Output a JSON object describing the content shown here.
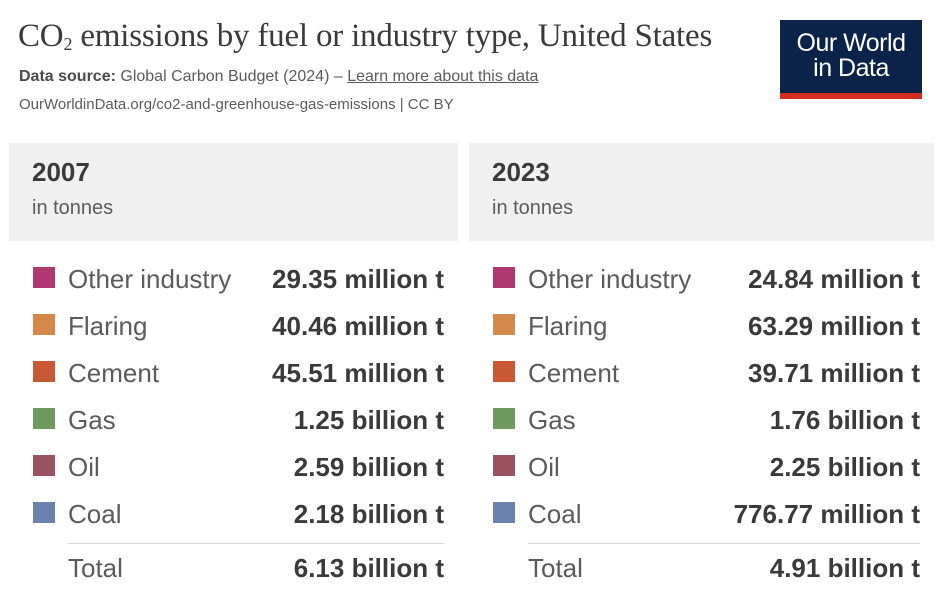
{
  "header": {
    "title_main": "CO",
    "title_sub": "2",
    "title_rest": " emissions by fuel or industry type, United States",
    "source_label": "Data source:",
    "source_text": "Global Carbon Budget (2024) – ",
    "source_link": "Learn more about this data",
    "url": "OurWorldinData.org/co2-and-greenhouse-gas-emissions | CC BY",
    "logo_line1": "Our World",
    "logo_line2": "in Data"
  },
  "chart_data": {
    "type": "table",
    "title": "CO₂ emissions by fuel or industry type, United States",
    "unit_label": "in tonnes",
    "categories": [
      "Other industry",
      "Flaring",
      "Cement",
      "Gas",
      "Oil",
      "Coal"
    ],
    "colors": [
      "#b13971",
      "#d4894a",
      "#c95934",
      "#6f9a5d",
      "#9a5160",
      "#6b82af"
    ],
    "series": [
      {
        "name": "2007",
        "values": [
          29350000,
          40460000,
          45510000,
          1250000000,
          2590000000,
          2180000000
        ],
        "display": [
          "29.35 million t",
          "40.46 million t",
          "45.51 million t",
          "1.25 billion t",
          "2.59 billion t",
          "2.18 billion t"
        ],
        "total": 6130000000,
        "total_display": "6.13 billion t"
      },
      {
        "name": "2023",
        "values": [
          24840000,
          63290000,
          39710000,
          1760000000,
          2250000000,
          776770000
        ],
        "display": [
          "24.84 million t",
          "63.29 million t",
          "39.71 million t",
          "1.76 billion t",
          "2.25 billion t",
          "776.77 million t"
        ],
        "total": 4910000000,
        "total_display": "4.91 billion t"
      }
    ],
    "total_label": "Total"
  }
}
